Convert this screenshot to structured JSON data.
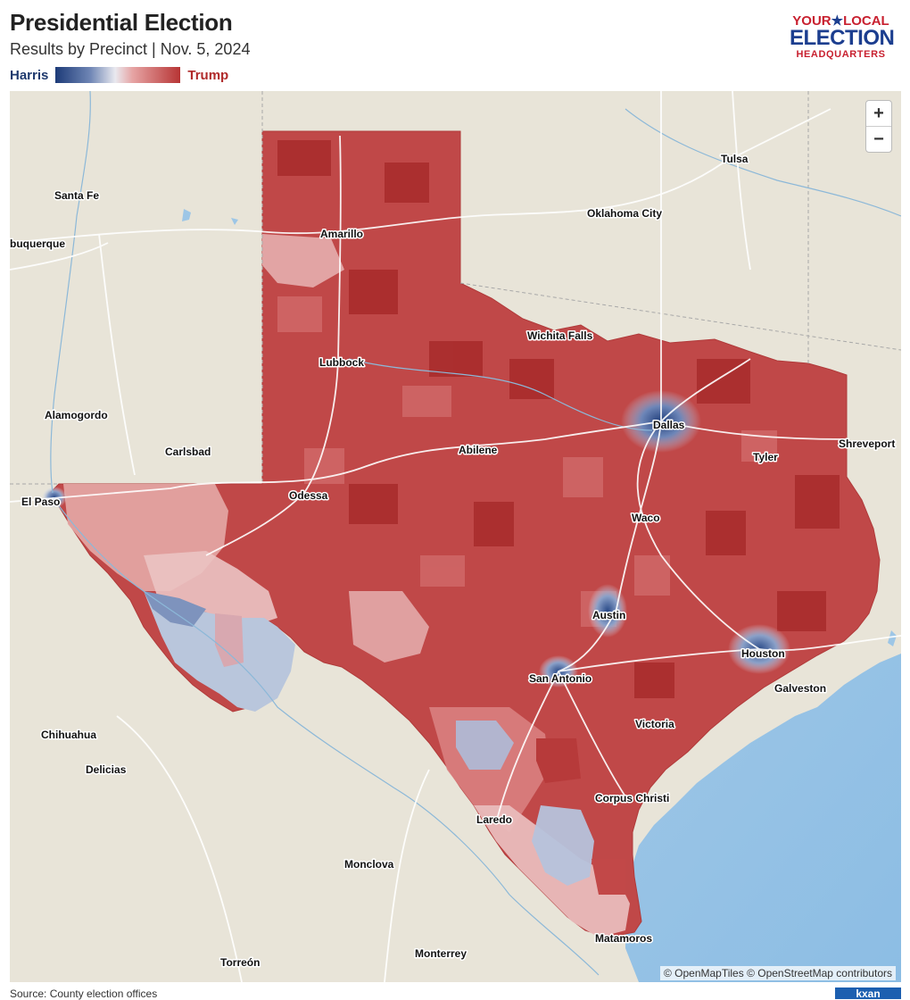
{
  "header": {
    "title": "Presidential Election",
    "subtitle": "Results by Precinct | Nov. 5, 2024"
  },
  "legend": {
    "left_label": "Harris",
    "right_label": "Trump",
    "left_color": "#1d3b78",
    "right_color": "#b73535"
  },
  "logo": {
    "line1_a": "YOUR",
    "star": "★",
    "line1_b": "LOCAL",
    "line2": "ELECTION",
    "line3": "HEADQUARTERS"
  },
  "map": {
    "zoom_in": "+",
    "zoom_out": "−",
    "attribution": "© OpenMapTiles © OpenStreetMap contributors",
    "cities": {
      "tulsa": "Tulsa",
      "santa_fe": "Santa Fe",
      "oklahoma_city": "Oklahoma City",
      "albuquerque": "buquerque",
      "amarillo": "Amarillo",
      "wichita_falls": "Wichita Falls",
      "lubbock": "Lubbock",
      "alamogordo": "Alamogordo",
      "dallas": "Dallas",
      "carlsbad": "Carlsbad",
      "abilene": "Abilene",
      "shreveport": "Shreveport",
      "tyler": "Tyler",
      "el_paso": "El Paso",
      "odessa": "Odessa",
      "waco": "Waco",
      "austin": "Austin",
      "houston": "Houston",
      "san_antonio": "San Antonio",
      "galveston": "Galveston",
      "victoria": "Victoria",
      "chihuahua": "Chihuahua",
      "delicias": "Delicias",
      "corpus_christi": "Corpus Christi",
      "laredo": "Laredo",
      "monclova": "Monclova",
      "matamoros": "Matamoros",
      "torreon": "Torreón",
      "monterrey": "Monterrey"
    }
  },
  "footer": {
    "source": "Source: County election offices",
    "corner_logo": "kxan"
  }
}
